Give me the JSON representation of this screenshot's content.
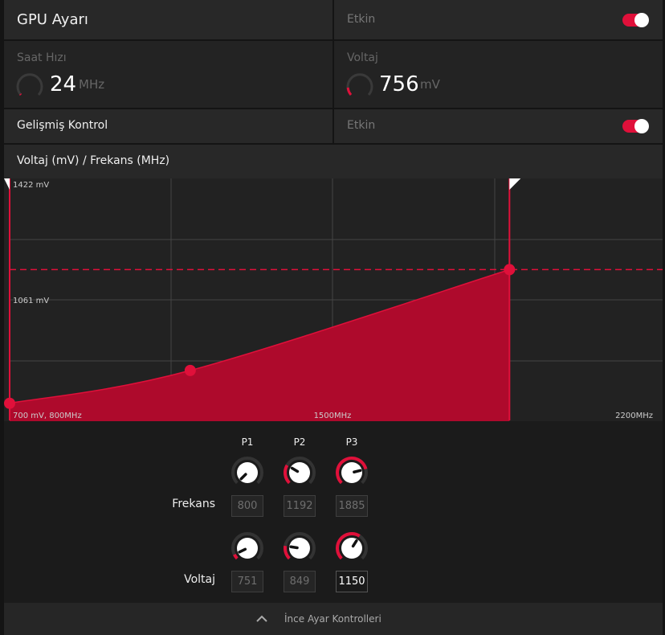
{
  "gpu": {
    "title": "GPU Ayarı",
    "status": "Etkin",
    "enabled": true
  },
  "clock": {
    "label": "Saat Hızı",
    "value": "24",
    "unit": "MHz",
    "fraction": 0.02
  },
  "voltage": {
    "label": "Voltaj",
    "value": "756",
    "unit": "mV",
    "fraction": 0.08
  },
  "advanced": {
    "title": "Gelişmiş Kontrol",
    "status": "Etkin",
    "enabled": true
  },
  "chart_section": {
    "title": "Voltaj (mV) / Frekans (MHz)"
  },
  "chart_data": {
    "type": "area",
    "title": "Voltaj (mV) / Frekans (MHz)",
    "xlim": [
      800,
      2200
    ],
    "ylim": [
      700,
      1422
    ],
    "labels": {
      "top": "1422 mV",
      "mid": "1061 mV",
      "origin": "700 mV, 800MHz",
      "xmid": "1500MHz",
      "xmax": "2200MHz"
    },
    "points": [
      {
        "name": "P1",
        "x": 800,
        "y": 751
      },
      {
        "name": "P2",
        "x": 1192,
        "y": 849
      },
      {
        "name": "P3",
        "x": 1885,
        "y": 1150
      }
    ],
    "grid": true,
    "color": "#e0103a"
  },
  "controls": {
    "columns": [
      "P1",
      "P2",
      "P3"
    ],
    "rows": [
      {
        "label": "Frekans",
        "values": [
          "800",
          "1192",
          "1885"
        ],
        "fractions": [
          0.0,
          0.28,
          0.78
        ]
      },
      {
        "label": "Voltaj",
        "values": [
          "751",
          "849",
          "1150"
        ],
        "fractions": [
          0.07,
          0.2,
          0.62
        ]
      }
    ]
  },
  "footer": {
    "label": "İnce Ayar Kontrolleri"
  }
}
